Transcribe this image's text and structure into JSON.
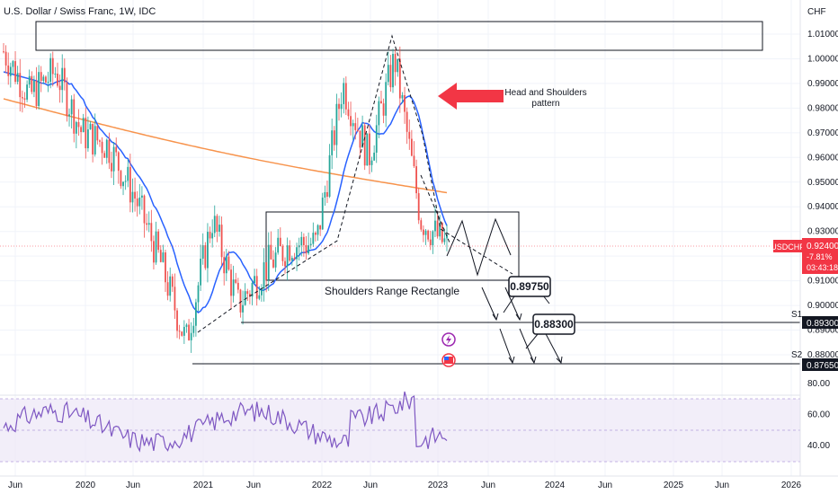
{
  "header": {
    "title": "U.S. Dollar / Swiss Franc, 1W, IDC",
    "currency": "CHF"
  },
  "price_axis": {
    "ticks": [
      "1.01000",
      "1.00000",
      "0.99000",
      "0.98000",
      "0.97000",
      "0.96000",
      "0.95000",
      "0.94000",
      "0.93000",
      "0.92000",
      "0.91000",
      "0.90000",
      "0.89000",
      "0.88000"
    ]
  },
  "time_axis": {
    "labels": [
      "Jun",
      "2020",
      "Jun",
      "2021",
      "Jun",
      "2022",
      "Jun",
      "2023",
      "Jun",
      "2024",
      "Jun",
      "2025",
      "Jun",
      "2026"
    ]
  },
  "current_price": {
    "symbol": "USDCHF",
    "price": "0.92400",
    "change": "-7.81%",
    "countdown": "03:43:18",
    "color": "#f23645"
  },
  "levels": {
    "s1_label": "S1",
    "s1_value": "0.89300",
    "s2_label": "S2",
    "s2_value": "0.87650"
  },
  "annotations": {
    "head_shoulders_line1": "Head and Shoulders",
    "head_shoulders_line2": "pattern",
    "rectangle_label": "Shoulders Range Rectangle",
    "target1": "0.89750",
    "target2": "0.88300"
  },
  "rsi": {
    "ticks": [
      "80.00",
      "60.00",
      "40.00"
    ],
    "overbought": 70,
    "oversold": 30
  },
  "colors": {
    "up": "#26a69a",
    "down": "#ef5350",
    "ma_fast": "#2962ff",
    "ma_slow": "#f7934c",
    "rsi": "#7e57c2",
    "arrow": "#f23645"
  },
  "chart_data": {
    "type": "candlestick",
    "symbol": "USDCHF",
    "timeframe": "1W",
    "y_range": [
      0.875,
      1.015
    ],
    "weekly_close_path": [
      {
        "date": "2019-05",
        "close": 1.003
      },
      {
        "date": "2019-08",
        "close": 0.985
      },
      {
        "date": "2019-11",
        "close": 0.995
      },
      {
        "date": "2020-01",
        "close": 0.97
      },
      {
        "date": "2020-03",
        "close": 0.965
      },
      {
        "date": "2020-06",
        "close": 0.945
      },
      {
        "date": "2020-09",
        "close": 0.918
      },
      {
        "date": "2020-12",
        "close": 0.885
      },
      {
        "date": "2021-03",
        "close": 0.935
      },
      {
        "date": "2021-05",
        "close": 0.9
      },
      {
        "date": "2021-08",
        "close": 0.915
      },
      {
        "date": "2021-11",
        "close": 0.925
      },
      {
        "date": "2022-02",
        "close": 0.925
      },
      {
        "date": "2022-05",
        "close": 0.99
      },
      {
        "date": "2022-07",
        "close": 0.96
      },
      {
        "date": "2022-10",
        "close": 1.0
      },
      {
        "date": "2022-12",
        "close": 0.935
      },
      {
        "date": "2023-02",
        "close": 0.924
      }
    ],
    "levels": [
      0.893,
      0.8765
    ],
    "targets": [
      0.8975,
      0.883
    ],
    "rsi_range": [
      20,
      90
    ]
  }
}
